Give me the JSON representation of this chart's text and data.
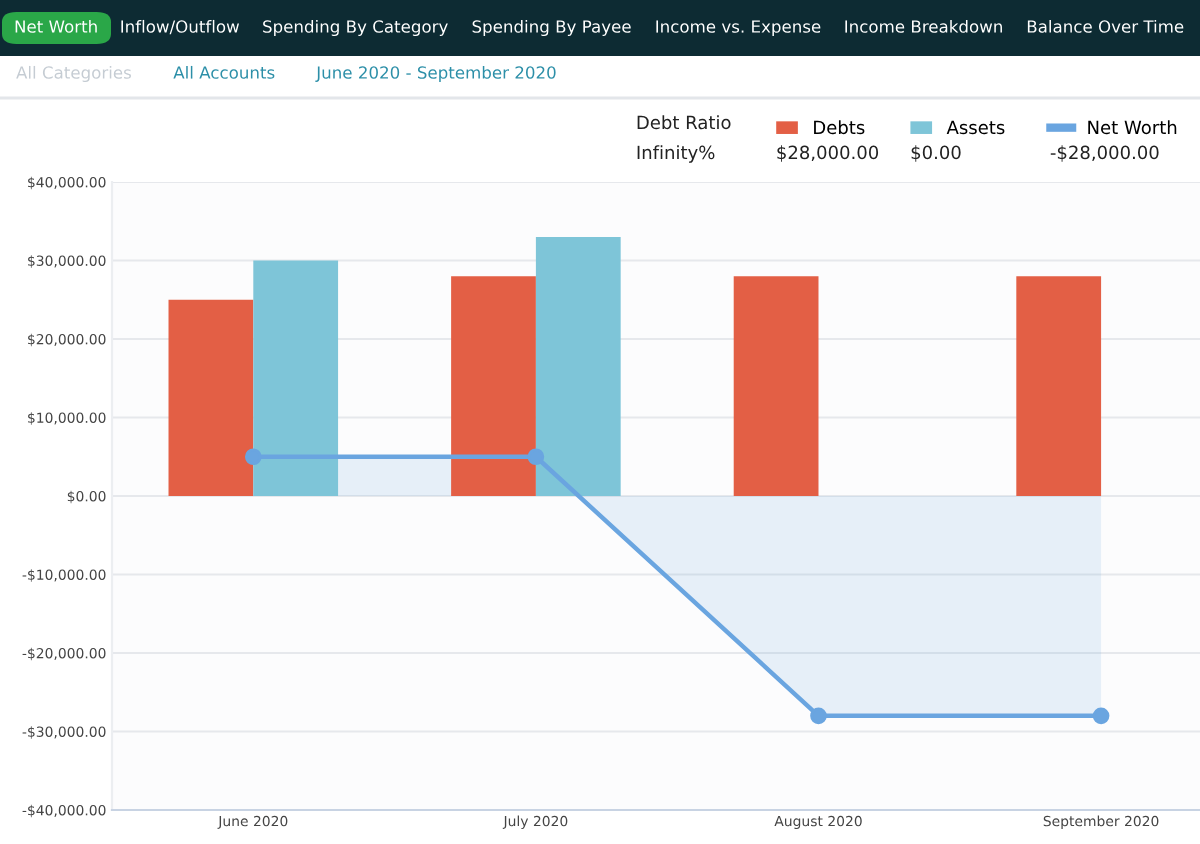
{
  "chart_data": {
    "type": "bar",
    "categories": [
      "June 2020",
      "July 2020",
      "August 2020",
      "September 2020"
    ],
    "series": [
      {
        "name": "Debts",
        "color": "#e35f45",
        "values": [
          25000,
          28000,
          28000,
          28000
        ]
      },
      {
        "name": "Assets",
        "color": "#7ec5d8",
        "values": [
          30000,
          33000,
          0,
          0
        ]
      },
      {
        "name": "Net Worth",
        "type": "area",
        "color": "#6aa5e0",
        "values": [
          5000,
          5000,
          -28000,
          -28000
        ]
      }
    ],
    "ylim": [
      -40000,
      40000
    ],
    "yticks": [
      {
        "value": -40000,
        "label": "-$40,000.00"
      },
      {
        "value": -30000,
        "label": "-$30,000.00"
      },
      {
        "value": -20000,
        "label": "-$20,000.00"
      },
      {
        "value": -10000,
        "label": "-$10,000.00"
      },
      {
        "value": 0,
        "label": "$0.00"
      },
      {
        "value": 10000,
        "label": "$10,000.00"
      },
      {
        "value": 20000,
        "label": "$20,000.00"
      },
      {
        "value": 30000,
        "label": "$30,000.00"
      },
      {
        "value": 40000,
        "label": "$40,000.00"
      }
    ],
    "grid": "y",
    "legend": "top right",
    "marker": "circle",
    "annotations": [
      "Net Worth",
      "Inflow/Outflow",
      "Spending By Category",
      "Spending By Payee",
      "Income vs. Expense",
      "Income Breakdown",
      "Balance Over Time",
      "All Categories",
      "All Accounts",
      "June 2020 - September 2020",
      "$28,000.00",
      "$0.00",
      "-$28,000.00",
      "Debt Ratio",
      "Infinity%"
    ]
  }
}
